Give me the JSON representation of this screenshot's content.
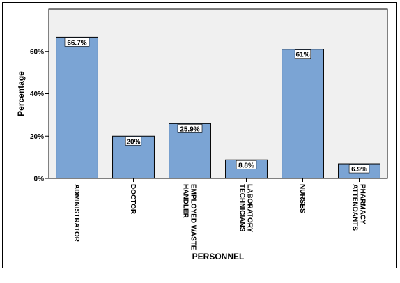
{
  "chart_data": {
    "type": "bar",
    "xlabel": "PERSONNEL",
    "ylabel": "Percentage",
    "ylim": [
      0,
      80
    ],
    "yticks": [
      {
        "value": 0,
        "label": "0%"
      },
      {
        "value": 20,
        "label": "20%"
      },
      {
        "value": 40,
        "label": "40%"
      },
      {
        "value": 60,
        "label": "60%"
      }
    ],
    "grid": false,
    "categories": [
      {
        "lines": [
          "ADMINISTRATOR"
        ]
      },
      {
        "lines": [
          "DOCTOR"
        ]
      },
      {
        "lines": [
          "EMPLOYED WASTE",
          "HANDLER"
        ]
      },
      {
        "lines": [
          "LABORATORY",
          "TECHNICIANS"
        ]
      },
      {
        "lines": [
          "NURSES"
        ]
      },
      {
        "lines": [
          "PHARMACY",
          "ATTENDANTS"
        ]
      }
    ],
    "values": [
      66.7,
      20,
      25.9,
      8.8,
      61,
      6.9
    ],
    "data_labels": [
      "66.7%",
      "20%",
      "25.9%",
      "8.8%",
      "61%",
      "6.9%"
    ],
    "colors": {
      "bar_fill": "#7ba4d4",
      "bar_stroke": "#000000",
      "plot_bg": "#f0f0f0",
      "label_bg": "#ffffff"
    }
  }
}
